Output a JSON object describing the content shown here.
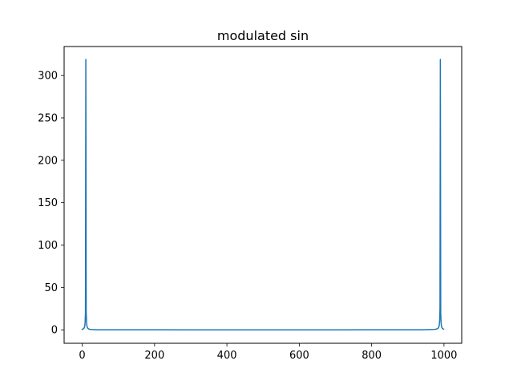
{
  "chart_data": {
    "type": "line",
    "title": "modulated sin",
    "xlabel": "",
    "ylabel": "",
    "xlim": [
      -50,
      1049
    ],
    "ylim": [
      -15.9,
      334.2
    ],
    "xticks": [
      0,
      200,
      400,
      600,
      800,
      1000
    ],
    "yticks": [
      0,
      50,
      100,
      150,
      200,
      250,
      300
    ],
    "grid": false,
    "legend": "none",
    "series": [
      {
        "color": "#1f77b4",
        "x": [
          0,
          2,
          4,
          5,
          6,
          7,
          8,
          9,
          10,
          11,
          12,
          13,
          14,
          15,
          16,
          18,
          20,
          25,
          30,
          40,
          60,
          100,
          200,
          300,
          400,
          500,
          600,
          700,
          800,
          900,
          940,
          960,
          970,
          975,
          980,
          982,
          984,
          985,
          986,
          987,
          988,
          989,
          990,
          991,
          992,
          993,
          994,
          995,
          996,
          998,
          999
        ],
        "y": [
          0.6,
          0.9,
          1.5,
          2.0,
          2.9,
          4.5,
          8.2,
          19.8,
          318.9,
          20.5,
          8.4,
          4.6,
          3.0,
          2.1,
          1.6,
          1.0,
          0.7,
          0.4,
          0.25,
          0.12,
          0.06,
          0.03,
          0.02,
          0.01,
          0.01,
          0.01,
          0.01,
          0.01,
          0.02,
          0.05,
          0.12,
          0.25,
          0.4,
          0.6,
          1.0,
          1.3,
          2.0,
          2.6,
          3.6,
          5.6,
          10.5,
          25.0,
          318.9,
          20.5,
          8.4,
          4.6,
          3.0,
          2.1,
          1.6,
          1.0,
          0.8
        ]
      }
    ]
  }
}
